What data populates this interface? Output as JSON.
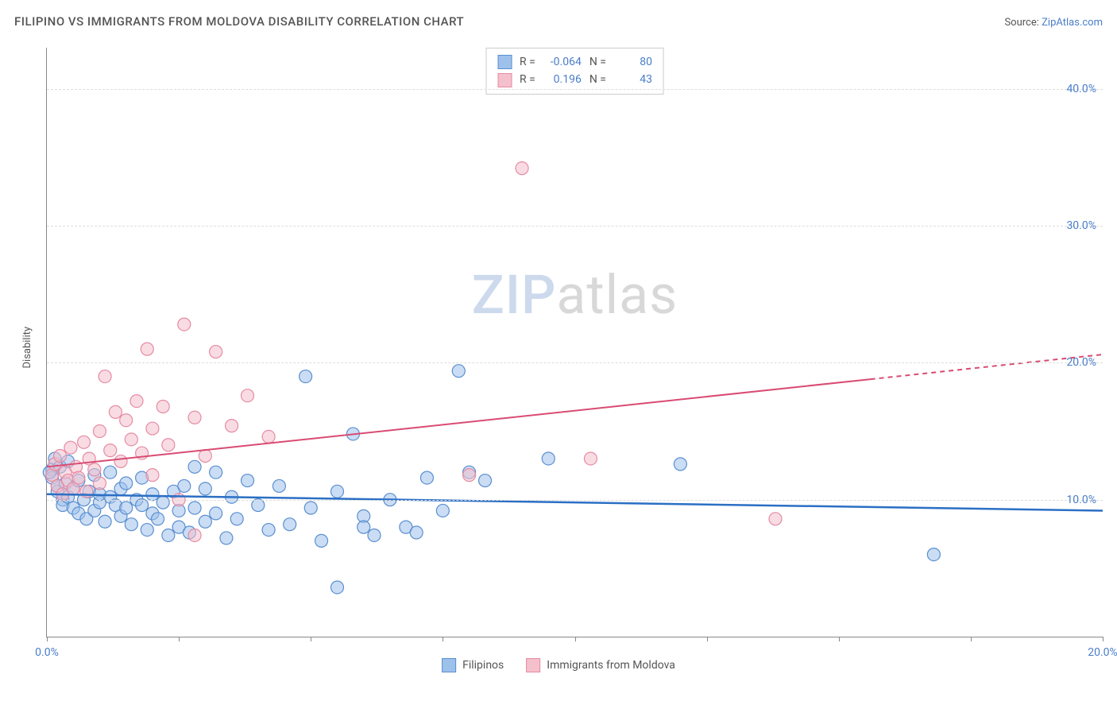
{
  "title": "FILIPINO VS IMMIGRANTS FROM MOLDOVA DISABILITY CORRELATION CHART",
  "source_label": "Source:",
  "source_name": "ZipAtlas.com",
  "ylabel": "Disability",
  "watermark": {
    "part1": "ZIP",
    "part2": "atlas"
  },
  "chart": {
    "type": "scatter",
    "background_color": "#ffffff",
    "grid_color": "#dddddd",
    "axis_color": "#888888",
    "tick_label_color": "#4a7ec9",
    "xlim": [
      0,
      20
    ],
    "ylim": [
      0,
      43
    ],
    "xticks": [
      0,
      2.5,
      5,
      7.5,
      10,
      12.5,
      15,
      17.5,
      20
    ],
    "xtick_labels": {
      "0": "0.0%",
      "20": "20.0%"
    },
    "yticks": [
      10,
      20,
      30,
      40
    ],
    "ytick_labels": [
      "10.0%",
      "20.0%",
      "30.0%",
      "40.0%"
    ],
    "point_radius": 8,
    "point_opacity": 0.55,
    "series": [
      {
        "id": "filipinos",
        "label": "Filipinos",
        "fill": "#9ec1eb",
        "stroke": "#5a8fd0",
        "R": "-0.064",
        "N": "80",
        "trend": {
          "y_at_xmin": 10.4,
          "y_at_xmax": 9.2,
          "color": "#2b6fc4",
          "width": 2.5,
          "solid_until_x": 20
        },
        "points": [
          [
            0.1,
            12.2
          ],
          [
            0.1,
            11.6
          ],
          [
            0.15,
            13.0
          ],
          [
            0.2,
            10.6
          ],
          [
            0.2,
            11.0
          ],
          [
            0.25,
            12.4
          ],
          [
            0.3,
            10.0
          ],
          [
            0.3,
            9.6
          ],
          [
            0.35,
            11.2
          ],
          [
            0.4,
            10.2
          ],
          [
            0.4,
            12.8
          ],
          [
            0.5,
            9.4
          ],
          [
            0.5,
            10.8
          ],
          [
            0.6,
            9.0
          ],
          [
            0.6,
            11.4
          ],
          [
            0.7,
            10.0
          ],
          [
            0.75,
            8.6
          ],
          [
            0.8,
            10.6
          ],
          [
            0.9,
            9.2
          ],
          [
            0.9,
            11.8
          ],
          [
            1.0,
            9.8
          ],
          [
            1.0,
            10.4
          ],
          [
            1.1,
            8.4
          ],
          [
            1.2,
            10.2
          ],
          [
            1.2,
            12.0
          ],
          [
            1.3,
            9.6
          ],
          [
            1.4,
            8.8
          ],
          [
            1.4,
            10.8
          ],
          [
            1.5,
            9.4
          ],
          [
            1.5,
            11.2
          ],
          [
            1.6,
            8.2
          ],
          [
            1.7,
            10.0
          ],
          [
            1.8,
            9.6
          ],
          [
            1.8,
            11.6
          ],
          [
            1.9,
            7.8
          ],
          [
            2.0,
            9.0
          ],
          [
            2.0,
            10.4
          ],
          [
            2.1,
            8.6
          ],
          [
            2.2,
            9.8
          ],
          [
            2.3,
            7.4
          ],
          [
            2.4,
            10.6
          ],
          [
            2.5,
            9.2
          ],
          [
            2.5,
            8.0
          ],
          [
            2.6,
            11.0
          ],
          [
            2.7,
            7.6
          ],
          [
            2.8,
            9.4
          ],
          [
            2.8,
            12.4
          ],
          [
            3.0,
            8.4
          ],
          [
            3.0,
            10.8
          ],
          [
            3.2,
            9.0
          ],
          [
            3.2,
            12.0
          ],
          [
            3.4,
            7.2
          ],
          [
            3.5,
            10.2
          ],
          [
            3.6,
            8.6
          ],
          [
            3.8,
            11.4
          ],
          [
            4.0,
            9.6
          ],
          [
            4.2,
            7.8
          ],
          [
            4.4,
            11.0
          ],
          [
            4.6,
            8.2
          ],
          [
            4.9,
            19.0
          ],
          [
            5.0,
            9.4
          ],
          [
            5.2,
            7.0
          ],
          [
            5.5,
            10.6
          ],
          [
            5.5,
            3.6
          ],
          [
            5.8,
            14.8
          ],
          [
            6.0,
            8.8
          ],
          [
            6.2,
            7.4
          ],
          [
            6.0,
            8.0
          ],
          [
            6.5,
            10.0
          ],
          [
            6.8,
            8.0
          ],
          [
            7.0,
            7.6
          ],
          [
            7.2,
            11.6
          ],
          [
            7.5,
            9.2
          ],
          [
            7.8,
            19.4
          ],
          [
            8.0,
            12.0
          ],
          [
            8.3,
            11.4
          ],
          [
            9.5,
            13.0
          ],
          [
            12.0,
            12.6
          ],
          [
            16.8,
            6.0
          ],
          [
            0.05,
            12.0
          ]
        ]
      },
      {
        "id": "moldova",
        "label": "Immigrants from Moldova",
        "fill": "#f4c0cc",
        "stroke": "#e68ba3",
        "R": "0.196",
        "N": "43",
        "trend": {
          "y_at_xmin": 12.4,
          "y_at_xmax": 20.6,
          "color": "#d94b72",
          "width": 2,
          "solid_until_x": 15.6
        },
        "points": [
          [
            0.1,
            11.8
          ],
          [
            0.15,
            12.6
          ],
          [
            0.2,
            11.0
          ],
          [
            0.25,
            13.2
          ],
          [
            0.3,
            10.4
          ],
          [
            0.35,
            12.0
          ],
          [
            0.4,
            11.4
          ],
          [
            0.45,
            13.8
          ],
          [
            0.5,
            10.8
          ],
          [
            0.55,
            12.4
          ],
          [
            0.6,
            11.6
          ],
          [
            0.7,
            14.2
          ],
          [
            0.75,
            10.6
          ],
          [
            0.8,
            13.0
          ],
          [
            0.9,
            12.2
          ],
          [
            1.0,
            15.0
          ],
          [
            1.0,
            11.2
          ],
          [
            1.1,
            19.0
          ],
          [
            1.2,
            13.6
          ],
          [
            1.3,
            16.4
          ],
          [
            1.4,
            12.8
          ],
          [
            1.5,
            15.8
          ],
          [
            1.6,
            14.4
          ],
          [
            1.7,
            17.2
          ],
          [
            1.8,
            13.4
          ],
          [
            1.9,
            21.0
          ],
          [
            2.0,
            15.2
          ],
          [
            2.0,
            11.8
          ],
          [
            2.2,
            16.8
          ],
          [
            2.3,
            14.0
          ],
          [
            2.5,
            10.0
          ],
          [
            2.6,
            22.8
          ],
          [
            2.8,
            16.0
          ],
          [
            2.8,
            7.4
          ],
          [
            3.0,
            13.2
          ],
          [
            3.2,
            20.8
          ],
          [
            3.5,
            15.4
          ],
          [
            3.8,
            17.6
          ],
          [
            4.2,
            14.6
          ],
          [
            8.0,
            11.8
          ],
          [
            9.0,
            34.2
          ],
          [
            10.3,
            13.0
          ],
          [
            13.8,
            8.6
          ]
        ]
      }
    ]
  },
  "stat_box": {
    "r_label": "R =",
    "n_label": "N ="
  }
}
